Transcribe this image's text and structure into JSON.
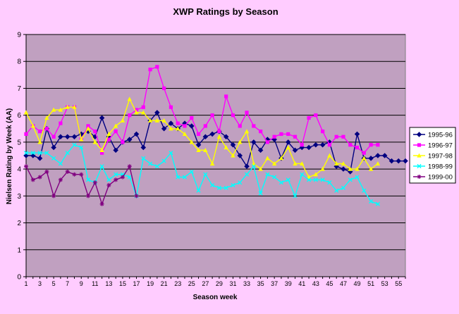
{
  "chart_data": {
    "type": "line",
    "title": "XWP Ratings by Season",
    "xlabel": "Season week",
    "ylabel": "Nielsen Rating by Week (AA)",
    "xlim": [
      1,
      56
    ],
    "ylim": [
      0,
      9
    ],
    "yticks": [
      0,
      1,
      2,
      3,
      4,
      5,
      6,
      7,
      8,
      9
    ],
    "xticks": [
      1,
      3,
      5,
      7,
      9,
      11,
      13,
      15,
      17,
      19,
      21,
      23,
      25,
      27,
      29,
      31,
      33,
      35,
      37,
      39,
      41,
      43,
      45,
      47,
      49,
      51,
      53,
      55
    ],
    "grid": "horizontal",
    "legend": "right",
    "plot_background": "#c0a0c0",
    "series": [
      {
        "name": "1995-96",
        "color": "#000080",
        "marker": "diamond",
        "values": [
          4.5,
          4.5,
          4.4,
          5.5,
          4.8,
          5.2,
          5.2,
          5.2,
          5.3,
          5.4,
          5.2,
          5.9,
          5.2,
          4.7,
          5.0,
          5.1,
          5.3,
          4.8,
          5.8,
          6.1,
          5.5,
          5.7,
          5.5,
          5.7,
          5.6,
          4.9,
          5.2,
          5.3,
          5.4,
          5.2,
          4.9,
          4.5,
          4.1,
          5.0,
          4.7,
          5.1,
          5.1,
          4.4,
          5.0,
          4.7,
          4.8,
          4.8,
          4.9,
          4.9,
          5.0,
          4.1,
          4.0,
          3.9,
          5.3,
          4.4,
          4.4,
          4.5,
          4.5,
          4.3,
          4.3,
          4.3
        ]
      },
      {
        "name": "1996-97",
        "color": "#ff00ff",
        "marker": "square",
        "values": [
          5.3,
          5.6,
          5.4,
          5.5,
          5.2,
          5.7,
          6.3,
          6.3,
          5.1,
          5.6,
          5.4,
          4.6,
          5.1,
          5.4,
          5.0,
          6.0,
          6.2,
          6.3,
          7.7,
          7.8,
          7.0,
          6.3,
          5.7,
          5.6,
          5.9,
          5.3,
          5.6,
          6.0,
          5.4,
          6.7,
          6.0,
          5.6,
          6.1,
          5.6,
          5.4,
          5.0,
          5.2,
          5.3,
          5.3,
          5.2,
          4.9,
          5.9,
          6.0,
          5.4,
          4.9,
          5.2,
          5.2,
          4.9,
          4.8,
          4.6,
          4.9,
          4.9
        ]
      },
      {
        "name": "1997-98",
        "color": "#ffff00",
        "marker": "triangle",
        "values": [
          6.1,
          5.6,
          5.0,
          5.9,
          6.2,
          6.2,
          6.3,
          6.3,
          5.1,
          5.5,
          5.0,
          4.7,
          5.3,
          5.6,
          5.8,
          6.6,
          6.1,
          6.1,
          5.8,
          5.8,
          5.8,
          5.5,
          5.5,
          5.3,
          5.0,
          4.7,
          4.7,
          4.2,
          5.2,
          4.8,
          4.5,
          5.0,
          5.4,
          4.2,
          4.0,
          4.4,
          4.2,
          4.4,
          4.8,
          4.2,
          4.2,
          3.7,
          3.8,
          4.0,
          4.5,
          4.2,
          4.2,
          4.0,
          4.0,
          4.4,
          4.0,
          4.2
        ]
      },
      {
        "name": "1998-99",
        "color": "#00ffff",
        "marker": "x",
        "values": [
          4.6,
          4.6,
          4.6,
          4.6,
          4.4,
          4.2,
          4.6,
          4.9,
          4.8,
          3.6,
          3.5,
          4.1,
          3.6,
          3.8,
          3.8,
          3.7,
          3.0,
          4.4,
          4.2,
          4.1,
          4.3,
          4.6,
          3.7,
          3.7,
          3.9,
          3.2,
          3.8,
          3.4,
          3.3,
          3.3,
          3.4,
          3.5,
          3.8,
          4.1,
          3.1,
          3.8,
          3.7,
          3.5,
          3.6,
          3.0,
          3.8,
          3.6,
          3.6,
          3.6,
          3.5,
          3.2,
          3.3,
          3.6,
          3.7,
          3.2,
          2.8,
          2.7
        ]
      },
      {
        "name": "1999-00",
        "color": "#800080",
        "marker": "star",
        "values": [
          4.1,
          3.6,
          3.7,
          3.9,
          3.0,
          3.6,
          3.9,
          3.8,
          3.8,
          3.0,
          3.5,
          2.7,
          3.4,
          3.6,
          3.7,
          4.1,
          3.0
        ]
      }
    ]
  }
}
